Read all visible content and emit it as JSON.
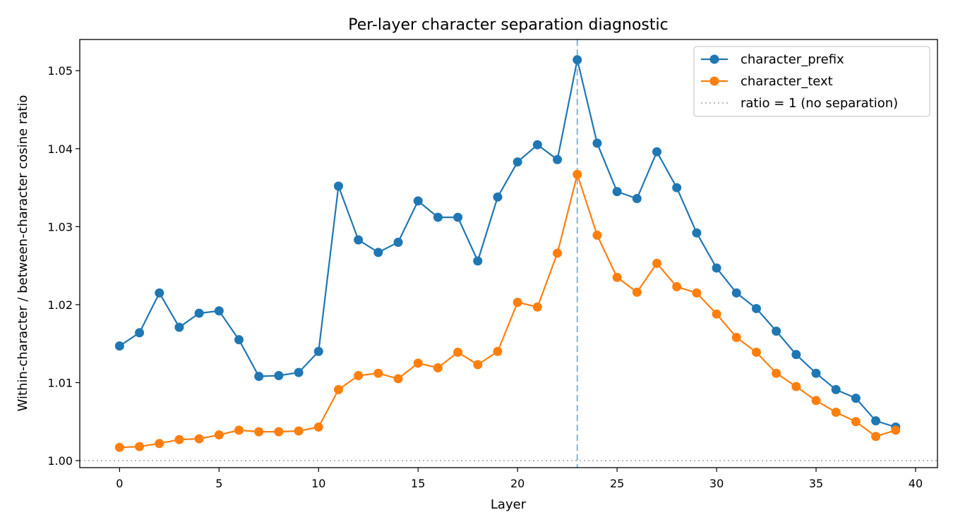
{
  "chart_data": {
    "type": "line",
    "title": "Per-layer character separation diagnostic",
    "xlabel": "Layer",
    "ylabel": "Within-character / between-character cosine ratio",
    "xlim": [
      -2,
      41.1
    ],
    "ylim": [
      0.9991,
      1.054
    ],
    "xticks": [
      0,
      5,
      10,
      15,
      20,
      25,
      30,
      35,
      40
    ],
    "xtick_labels": [
      "0",
      "5",
      "10",
      "15",
      "20",
      "25",
      "30",
      "35",
      "40"
    ],
    "yticks": [
      1.0,
      1.01,
      1.02,
      1.03,
      1.04,
      1.05
    ],
    "ytick_labels": [
      "1.00",
      "1.01",
      "1.02",
      "1.03",
      "1.04",
      "1.05"
    ],
    "grid": false,
    "legend_position": "top-right",
    "x": [
      0,
      1,
      2,
      3,
      4,
      5,
      6,
      7,
      8,
      9,
      10,
      11,
      12,
      13,
      14,
      15,
      16,
      17,
      18,
      19,
      20,
      21,
      22,
      23,
      24,
      25,
      26,
      27,
      28,
      29,
      30,
      31,
      32,
      33,
      34,
      35,
      36,
      37,
      38,
      39
    ],
    "series": [
      {
        "name": "character_prefix",
        "color": "#1f77b4",
        "marker": "circle",
        "values": [
          1.0147,
          1.0164,
          1.0215,
          1.0171,
          1.0189,
          1.0192,
          1.0155,
          1.0108,
          1.0109,
          1.0113,
          1.014,
          1.0352,
          1.0283,
          1.0267,
          1.028,
          1.0333,
          1.0312,
          1.0312,
          1.0256,
          1.0338,
          1.0383,
          1.0405,
          1.0386,
          1.0514,
          1.0407,
          1.0345,
          1.0336,
          1.0396,
          1.035,
          1.0292,
          1.0247,
          1.0215,
          1.0195,
          1.0166,
          1.0136,
          1.0112,
          1.0091,
          1.008,
          1.0051,
          1.0043
        ]
      },
      {
        "name": "character_text",
        "color": "#ff7f0e",
        "marker": "circle",
        "values": [
          1.0017,
          1.0018,
          1.0022,
          1.0027,
          1.0028,
          1.0033,
          1.0039,
          1.0037,
          1.0037,
          1.0038,
          1.0043,
          1.0091,
          1.0109,
          1.0112,
          1.0105,
          1.0125,
          1.0119,
          1.0139,
          1.0123,
          1.014,
          1.0203,
          1.0197,
          1.0266,
          1.0367,
          1.0289,
          1.0235,
          1.0216,
          1.0253,
          1.0223,
          1.0215,
          1.0188,
          1.0158,
          1.0139,
          1.0112,
          1.0095,
          1.0077,
          1.0062,
          1.005,
          1.0031,
          1.0039
        ]
      }
    ],
    "reference_lines": [
      {
        "name": "ratio = 1 (no separation)",
        "orientation": "horizontal",
        "value": 1.0,
        "style": "dotted",
        "color": "#bbbbbb"
      },
      {
        "orientation": "vertical",
        "value": 23,
        "style": "dashed",
        "color": "#1f77b4"
      }
    ],
    "legend": [
      {
        "label": "character_prefix",
        "color": "#1f77b4",
        "style": "line-marker"
      },
      {
        "label": "character_text",
        "color": "#ff7f0e",
        "style": "line-marker"
      },
      {
        "label": "ratio = 1 (no separation)",
        "color": "#bbbbbb",
        "style": "dotted"
      }
    ]
  }
}
